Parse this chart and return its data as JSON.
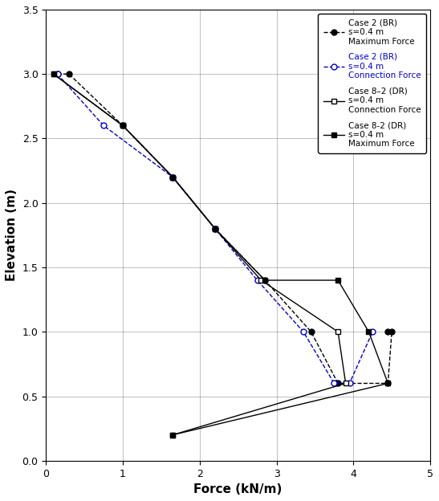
{
  "xlabel": "Force (kN/m)",
  "ylabel": "Elevation (m)",
  "xlim": [
    0,
    5
  ],
  "ylim": [
    0,
    3.5
  ],
  "xticks": [
    0,
    1,
    2,
    3,
    4,
    5
  ],
  "yticks": [
    0,
    0.5,
    1.0,
    1.5,
    2.0,
    2.5,
    3.0,
    3.5
  ],
  "case2_max": {
    "label": "Case 2 (BR)\ns=0.4 m\nMaximum Force",
    "force": [
      0.15,
      0.3,
      1.0,
      1.65,
      2.2,
      2.85,
      3.45,
      3.8,
      4.45,
      4.5,
      4.45
    ],
    "elevation": [
      3.0,
      3.0,
      2.6,
      2.2,
      1.8,
      1.4,
      1.0,
      0.6,
      0.6,
      1.0,
      1.0
    ],
    "color": "#000000",
    "linestyle": "--",
    "marker": "o",
    "mfc": "#000000"
  },
  "case2_conn": {
    "label": "Case 2 (BR)\ns=0.4 m\nConnection Force",
    "force": [
      0.15,
      0.75,
      1.65,
      2.2,
      2.75,
      3.35,
      3.75,
      3.95,
      4.25
    ],
    "elevation": [
      3.0,
      2.6,
      2.2,
      1.8,
      1.4,
      1.0,
      0.6,
      0.6,
      1.0
    ],
    "color": "#0000cc",
    "linestyle": "--",
    "marker": "o",
    "mfc": "#ffffff"
  },
  "case82_conn": {
    "label": "Case 8–2 (DR)\ns=0.4 m\nConnection Force",
    "force": [
      0.1,
      1.0,
      1.65,
      2.2,
      2.8,
      3.8,
      3.9,
      1.65
    ],
    "elevation": [
      3.0,
      2.6,
      2.2,
      1.8,
      1.4,
      1.0,
      0.6,
      0.2
    ],
    "color": "#000000",
    "linestyle": "-",
    "marker": "s",
    "mfc": "#ffffff"
  },
  "case82_max": {
    "label": "Case 8-2 (DR)\ns=0.4 m\nMaximum Force",
    "force": [
      0.1,
      1.0,
      1.65,
      2.2,
      2.85,
      3.8,
      4.2,
      4.45,
      1.65
    ],
    "elevation": [
      3.0,
      2.6,
      2.2,
      1.8,
      1.4,
      1.4,
      1.0,
      0.6,
      0.2
    ],
    "color": "#000000",
    "linestyle": "-",
    "marker": "s",
    "mfc": "#000000"
  },
  "label_colors": [
    "#000000",
    "#0000cc",
    "#000000",
    "#000000"
  ]
}
